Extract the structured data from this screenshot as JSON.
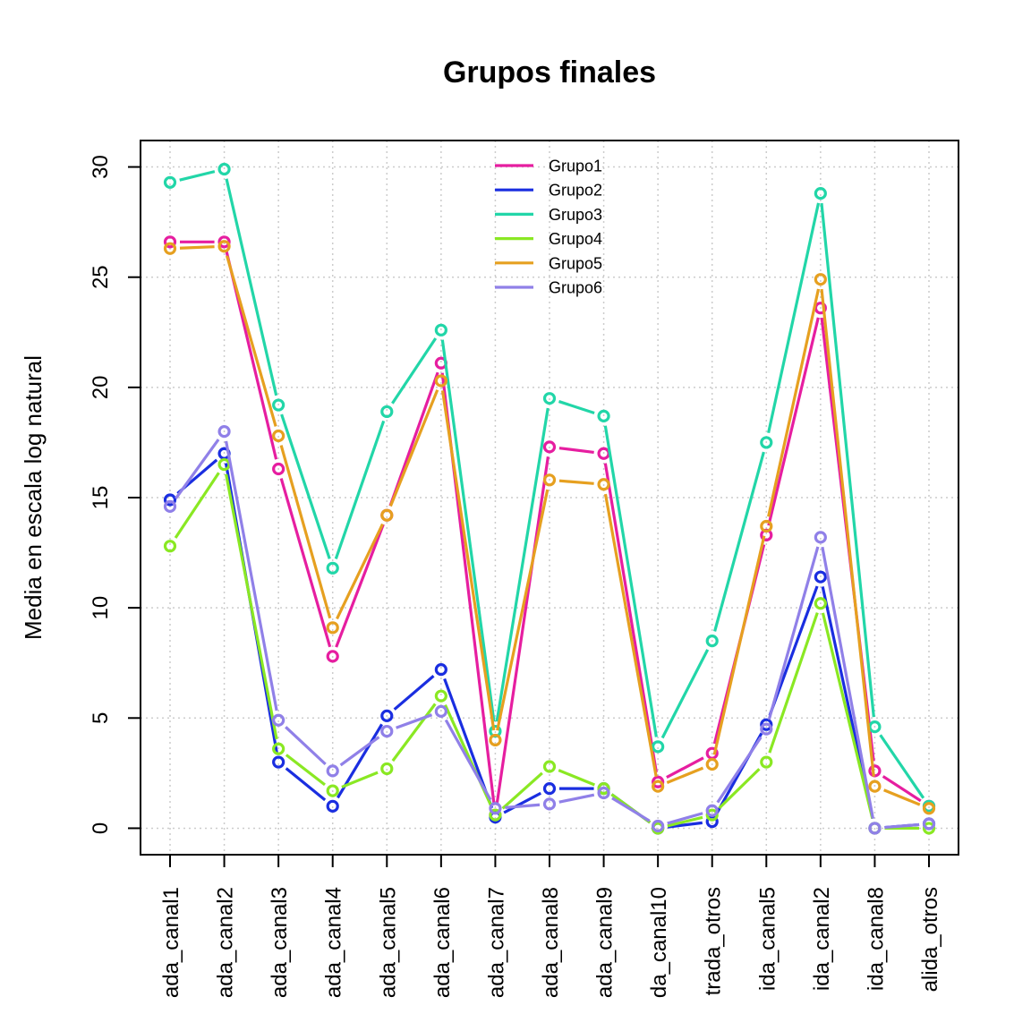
{
  "chart_data": {
    "type": "line",
    "title": "Grupos finales",
    "xlabel": "",
    "ylabel": "Media en escala log natural",
    "ylim": [
      -1.2,
      31.2
    ],
    "yticks": [
      0,
      5,
      10,
      15,
      20,
      25,
      30
    ],
    "grid": true,
    "legend_position": "top-center",
    "categories": [
      "ada_canal1",
      "ada_canal2",
      "ada_canal3",
      "ada_canal4",
      "ada_canal5",
      "ada_canal6",
      "ada_canal7",
      "ada_canal8",
      "ada_canal9",
      "da_canal10",
      "trada_otros",
      "ida_canal5",
      "ida_canal2",
      "ida_canal8",
      "alida_otros"
    ],
    "series": [
      {
        "name": "Grupo1",
        "color": "#e61ea0",
        "values": [
          26.6,
          26.6,
          16.3,
          7.8,
          14.2,
          21.1,
          0.6,
          17.3,
          17.0,
          2.1,
          3.4,
          13.3,
          23.6,
          2.6,
          1.0
        ]
      },
      {
        "name": "Grupo2",
        "color": "#1a2ee0",
        "values": [
          14.9,
          17.0,
          3.0,
          1.0,
          5.1,
          7.2,
          0.5,
          1.8,
          1.8,
          0.0,
          0.3,
          4.7,
          11.4,
          0.0,
          0.2
        ]
      },
      {
        "name": "Grupo3",
        "color": "#22d6a8",
        "values": [
          29.3,
          29.9,
          19.2,
          11.8,
          18.9,
          22.6,
          4.4,
          19.5,
          18.7,
          3.7,
          8.5,
          17.5,
          28.8,
          4.6,
          1.0
        ]
      },
      {
        "name": "Grupo4",
        "color": "#8ae823",
        "values": [
          12.8,
          16.5,
          3.6,
          1.7,
          2.7,
          6.0,
          0.6,
          2.8,
          1.8,
          0.0,
          0.6,
          3.0,
          10.2,
          0.0,
          0.0
        ]
      },
      {
        "name": "Grupo5",
        "color": "#e6a020",
        "values": [
          26.3,
          26.4,
          17.8,
          9.1,
          14.2,
          20.3,
          4.0,
          15.8,
          15.6,
          1.9,
          2.9,
          13.7,
          24.9,
          1.9,
          0.9
        ]
      },
      {
        "name": "Grupo6",
        "color": "#9080e8",
        "values": [
          14.6,
          18.0,
          4.9,
          2.6,
          4.4,
          5.3,
          0.9,
          1.1,
          1.6,
          0.1,
          0.8,
          4.5,
          13.2,
          0.0,
          0.2
        ]
      }
    ]
  }
}
